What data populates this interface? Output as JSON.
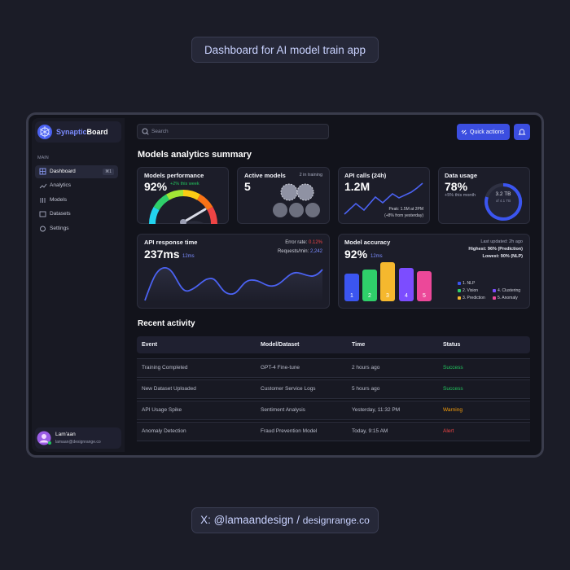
{
  "header": {
    "title": "Dashboard for AI model train app"
  },
  "footer": {
    "credit_handle": "X: @lamaandesign",
    "credit_sep": "/",
    "credit_site": "designrange.co"
  },
  "sidebar": {
    "brand_a": "Synaptic",
    "brand_b": "Board",
    "section": "MAIN",
    "nav": [
      {
        "label": "Dashboard",
        "shortcut": "⌘1"
      },
      {
        "label": "Analytics"
      },
      {
        "label": "Models"
      },
      {
        "label": "Datasets"
      },
      {
        "label": "Settings"
      }
    ],
    "user": {
      "name": "Lam'aan",
      "email": "lamaan@designrange.co"
    }
  },
  "topbar": {
    "search": "Search",
    "quick_actions": "Quick actions"
  },
  "summary": {
    "title": "Models analytics summary",
    "performance": {
      "title": "Models performance",
      "value": "92%",
      "delta": "+2% this week"
    },
    "active": {
      "title": "Active models",
      "note": "2 in training",
      "value": "5"
    },
    "api_calls": {
      "title": "API calls (24h)",
      "value": "1.2M",
      "peak": "Peak: 1.5M at 2PM",
      "delta": "(+8% from yesterday)"
    },
    "data_usage": {
      "title": "Data usage",
      "value": "78%",
      "delta": "+5% this month",
      "used": "3.2 TB",
      "total": "of 4.1 TB"
    },
    "response": {
      "title": "API response time",
      "value": "237ms",
      "sub": "12ms",
      "error_label": "Error rate:",
      "error_value": "0.12%",
      "rpm_label": "Requests/min:",
      "rpm_value": "2,242"
    },
    "accuracy": {
      "title": "Model accuracy",
      "value": "92%",
      "sub": "12ms",
      "updated": "Last updated: 2h ago",
      "highest": "Highest: 96% (Prediction)",
      "lowest": "Lowest: 90% (NLP)",
      "bar_labels": [
        "1",
        "2",
        "3",
        "4",
        "5"
      ],
      "legend": [
        {
          "label": "1. NLP",
          "color": "#3b55f0"
        },
        {
          "label": "2. Vision",
          "color": "#2fcf6a"
        },
        {
          "label": "3. Prediction",
          "color": "#f5b82e"
        },
        {
          "label": "4. Clustering",
          "color": "#7c4dff"
        },
        {
          "label": "5. Anomaly",
          "color": "#ec4899"
        }
      ]
    }
  },
  "activity": {
    "title": "Recent activity",
    "columns": [
      "Event",
      "Model/Dataset",
      "Time",
      "Status"
    ],
    "rows": [
      {
        "event": "Training Completed",
        "model": "GPT-4 Fine-tune",
        "time": "2 hours ago",
        "status": "Success",
        "status_color": "#22c55e"
      },
      {
        "event": "New Dataset Uploaded",
        "model": "Customer Service Logs",
        "time": "5 hours ago",
        "status": "Success",
        "status_color": "#22c55e"
      },
      {
        "event": "API Usage Spike",
        "model": "Sentiment Analysis",
        "time": "Yesterday, 11:32 PM",
        "status": "Warning",
        "status_color": "#f59e0b"
      },
      {
        "event": "Anomaly Detection",
        "model": "Fraud Prevention Model",
        "time": "Today, 9:15 AM",
        "status": "Alert",
        "status_color": "#ef4444"
      }
    ]
  }
}
